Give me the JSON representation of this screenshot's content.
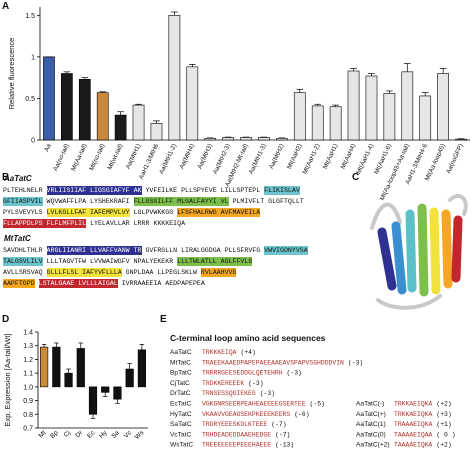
{
  "panel_labels": [
    "A",
    "B",
    "C",
    "D",
    "E"
  ],
  "chart_data": [
    {
      "type": "bar",
      "y_label": "Relative fluorescence",
      "categories": [
        "Aa",
        "Aa(no-tail)",
        "Mt(Aa-tail)",
        "Mt(no-tail)",
        "Mt(wt-tail)",
        "Aa(MtH1)",
        "AaH1-3/MtH6",
        "Aa(MtH1-2)",
        "Aa(MtH4)",
        "Aa(MtH3)",
        "Aa(MtH2-3)",
        "Aa(MtH2-Mt-tail)",
        "Aa(MtH1-3)",
        "Aa(MtH2)",
        "Mt(AaH2)",
        "Mt(AaH1-2)",
        "Mt(AaH1)",
        "Mt(AaH4)",
        "Mt(AaH1-4)",
        "Mt(AaH1-6)",
        "Mt(Aa-loop45+Aa-tail)",
        "AaH1-3/MtH4-6",
        "Mt(Aa-loop45)",
        "Aa(noGFP)"
      ],
      "values": [
        1.0,
        0.8,
        0.73,
        0.57,
        0.3,
        0.42,
        0.2,
        1.5,
        0.88,
        0.02,
        0.03,
        0.03,
        0.03,
        0.02,
        0.57,
        0.41,
        0.4,
        0.83,
        0.77,
        0.56,
        0.82,
        0.53,
        0.8,
        0.01
      ],
      "errors": [
        0,
        0.02,
        0.02,
        0.01,
        0.04,
        0.01,
        0.03,
        0.04,
        0.03,
        0.005,
        0.005,
        0.005,
        0.005,
        0.005,
        0.04,
        0.02,
        0.02,
        0.03,
        0.03,
        0.03,
        0.1,
        0.04,
        0.06,
        0.005
      ],
      "colors": [
        "#3b5ea8",
        "#1a1a1a",
        "#1a1a1a",
        "#c98a3c",
        "#1a1a1a",
        "#e6e6e6",
        "#e6e6e6",
        "#e6e6e6",
        "#e6e6e6",
        "#e6e6e6",
        "#e6e6e6",
        "#e6e6e6",
        "#e6e6e6",
        "#e6e6e6",
        "#e6e6e6",
        "#e6e6e6",
        "#e6e6e6",
        "#e6e6e6",
        "#e6e6e6",
        "#e6e6e6",
        "#e6e6e6",
        "#e6e6e6",
        "#e6e6e6",
        "#e6e6e6"
      ],
      "ylim": [
        0,
        1.6
      ],
      "yticks": [
        0,
        0.5,
        1,
        1.5
      ]
    },
    {
      "type": "bar",
      "y_label": "Exp. Expression [Aa-tail/Wt]",
      "categories": [
        "Mt",
        "Bp",
        "Cj",
        "Dr",
        "Ec",
        "Hy",
        "Sa",
        "Vc",
        "Ws"
      ],
      "values": [
        1.29,
        1.29,
        1.1,
        1.28,
        0.8,
        0.96,
        0.91,
        1.13,
        1.27
      ],
      "errors": [
        0.02,
        0.03,
        0.03,
        0.04,
        0.03,
        0.03,
        0.03,
        0.04,
        0.04
      ],
      "colors": [
        "#c98a3c",
        "#111111",
        "#111111",
        "#111111",
        "#111111",
        "#111111",
        "#111111",
        "#111111",
        "#111111"
      ],
      "baseline": 1,
      "ylim": [
        0.7,
        1.4
      ],
      "yticks": [
        0.7,
        0.8,
        0.9,
        {
          "value": 1,
          "label": "1.0"
        },
        1.1,
        1.2,
        1.3,
        1.4
      ]
    }
  ],
  "sequences": [
    {
      "name": "AaTatC",
      "lines": [
        [
          {
            "text": "PLTEHLNELR "
          },
          {
            "text": "VRLIISIIAF LIGSGIAFYF AK",
            "color": "#2e3192"
          },
          {
            "text": " YVFEILKE PLLSPYEVE LILLSPTEPL "
          },
          {
            "text": "FLIKISLAV",
            "color": "#6cc5cc"
          }
        ],
        [
          {
            "text": "GFIIASPVIL",
            "color": "#6cc5cc"
          },
          {
            "text": " WQVWAFFLPA LYSHEKRAFI "
          },
          {
            "text": "FLLGSGILFF MLGALFAYYI VL",
            "color": "#7cbf4a"
          },
          {
            "text": " PLMIVFLT GLGFTQLLT"
          }
        ],
        [
          {
            "text": "PYLSVEVYLS "
          },
          {
            "text": "LVLKGLLFAF IAFEMPVLVY",
            "color": "#f2e33c"
          },
          {
            "text": " LGLPVWKKGG "
          },
          {
            "text": "LFSFHALRWG AVFMAVEILA",
            "color": "#f5a623"
          }
        ],
        [
          {
            "text": "FLLAPPDLPS FLFLMFPLIL",
            "color": "#c1272d"
          },
          {
            "text": " LYELAVLLAR LRRR KKKKEIQA"
          }
        ]
      ]
    },
    {
      "name": "MtTatC",
      "lines": [
        [
          {
            "text": "SAVDHLTHLR "
          },
          {
            "text": "ARGLIIANRI LLVAFFVANW TR",
            "color": "#2e3192"
          },
          {
            "text": " GVFRGLLN LIRALGGDGA PLLSFRVFG "
          },
          {
            "text": "VWVIGDNYVSA",
            "color": "#6cc5cc"
          }
        ],
        [
          {
            "text": "TALGSVLILV",
            "color": "#6cc5cc"
          },
          {
            "text": " LLLTAGVTFW LVVWAIWGFV NPALYEKEKR "
          },
          {
            "text": "LLLTWLATLL AGLFFVLG",
            "color": "#7cbf4a"
          }
        ],
        [
          {
            "text": "AVLLSRSVAQ "
          },
          {
            "text": "GLLLFLSL IAFYVFLLLA",
            "color": "#f2e33c"
          },
          {
            "text": " GNPLDAA LLPEGLSKLW "
          },
          {
            "text": "RVLAAHVVG",
            "color": "#f5a623"
          }
        ],
        [
          {
            "text": "AAPFTGPD",
            "color": "#f5a623"
          },
          {
            "text": " "
          },
          {
            "text": "LSTALGAAE LVLLLAIGAL",
            "color": "#c1272d"
          },
          {
            "text": " IVRRAAEEIA AEDPAPEPEA"
          }
        ]
      ]
    }
  ],
  "loops": {
    "title": "C-terminal loop amino acid sequences",
    "rows": [
      {
        "name": "AaTatC",
        "seq": "TRKKKEIQA",
        "charge": "(+4)"
      },
      {
        "name": "MtTatC",
        "seq": "TRAEEKAAEDPAPEPAEEAAEAVSPAPVSGHDDDVIN",
        "charge": "(-3)"
      },
      {
        "name": "BpTatC",
        "seq": "TRRRRGEESEDDGLQETEHRH",
        "charge": "(-3)"
      },
      {
        "name": "CjTatC",
        "seq": "TRDKKEREEEK",
        "charge": "(-3)"
      },
      {
        "name": "DrTatC",
        "seq": "TRNSESSQGIEKEG",
        "charge": "(-3)"
      },
      {
        "name": "EcTatC",
        "seq": "VGKGNRSEERPEAHEAEEEEGSERTEE",
        "charge": "(-5)"
      },
      {
        "name": "HyTatC",
        "seq": "VKAAVVGEAGSEKPKEEEKEERS",
        "charge": "(-6)"
      },
      {
        "name": "SaTatC",
        "seq": "TRDRYEEESKDLKTEEE",
        "charge": "(-7)"
      },
      {
        "name": "VcTatC",
        "seq": "TRHDEADEDDAAEHEDGE",
        "charge": "(-7)"
      },
      {
        "name": "WsTatC",
        "seq": "TREEEEEEEPEEEHAEEE",
        "charge": "(-13)"
      }
    ],
    "rows_right": [
      {
        "name": "AaTatC(-)",
        "seq": "TRKKAEIQKA",
        "charge": "(+2)"
      },
      {
        "name": "AaTatC(+)",
        "seq": "TRKKAEIQKA",
        "charge": "(+3)"
      },
      {
        "name": "AaTatC(1)",
        "seq": "TRAAAEIQKA",
        "charge": "(+1)"
      },
      {
        "name": "AaTatC(0)",
        "seq": "TAAAAEIQAA",
        "charge": "( 0 )"
      },
      {
        "name": "AaTatC(+2)",
        "seq": "TAAAAEIQKA",
        "charge": "(+2)"
      }
    ]
  }
}
